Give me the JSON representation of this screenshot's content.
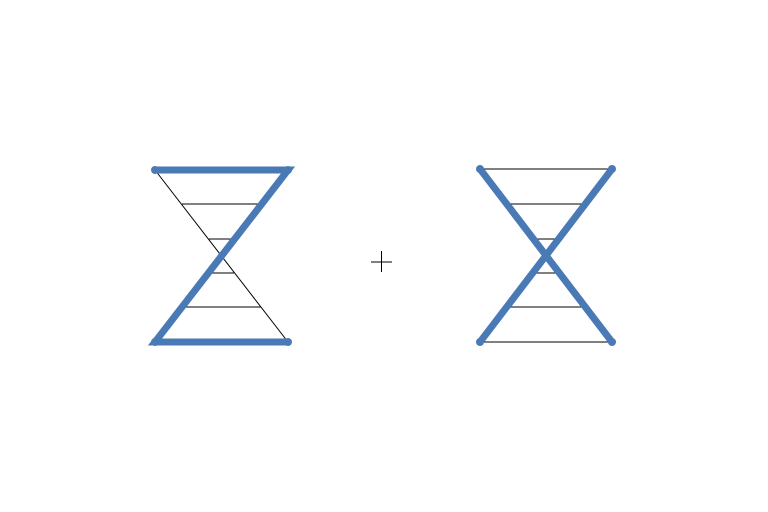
{
  "diagram": {
    "figures": [
      {
        "name": "z-shaped-hourglass",
        "style": "z-shape"
      },
      {
        "name": "x-shaped-hourglass",
        "style": "x-shape"
      }
    ],
    "operator_symbol": "plus",
    "colors": {
      "accent": "#4a7ab5",
      "line": "#000000",
      "background": "#ffffff"
    }
  }
}
